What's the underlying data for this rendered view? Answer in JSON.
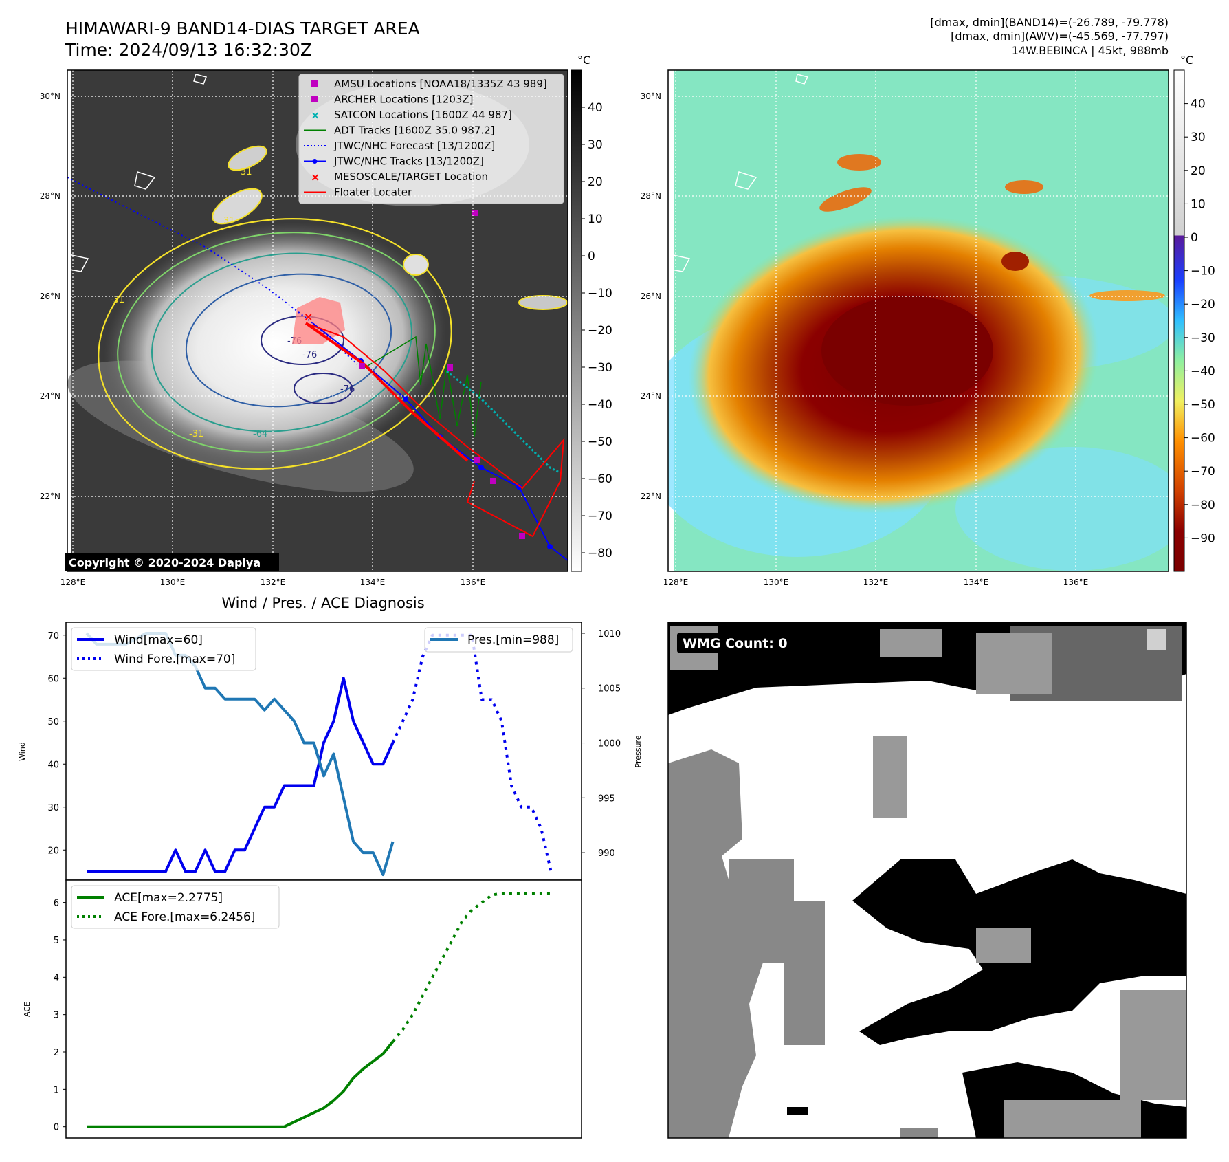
{
  "header": {
    "title_line1": "HIMAWARI-9 BAND14-DIAS TARGET AREA",
    "title_line2": "Time: 2024/09/13 16:32:30Z",
    "stats_line1": "[dmax, dmin](BAND14)=(-26.789, -79.778)",
    "stats_line2": "[dmax, dmin](AWV)=(-45.569, -77.797)",
    "stats_line3": "14W.BEBINCA | 45kt, 988mb"
  },
  "map": {
    "lon_ticks": [
      "128°E",
      "130°E",
      "132°E",
      "134°E",
      "136°E"
    ],
    "lat_ticks": [
      "30°N",
      "28°N",
      "26°N",
      "24°N",
      "22°N"
    ],
    "copyright": "Copyright © 2020-2024 Dapiya",
    "contour_labels": [
      "31",
      "31",
      "-31",
      "-31",
      "-64",
      "-76",
      "-76",
      "-76"
    ],
    "legend": [
      {
        "label": "AMSU Locations [NOAA18/1335Z 43 989]",
        "color": "#c000c0",
        "kind": "square"
      },
      {
        "label": "ARCHER Locations [1203Z]",
        "color": "#c000c0",
        "kind": "square"
      },
      {
        "label": "SATCON Locations [1600Z 44 987]",
        "color": "#00b0b0",
        "kind": "x"
      },
      {
        "label": "ADT Tracks [1600Z 35.0 987.2]",
        "color": "#008000",
        "kind": "line"
      },
      {
        "label": "JTWC/NHC Forecast [13/1200Z]",
        "color": "#0000ff",
        "kind": "dotted"
      },
      {
        "label": "JTWC/NHC Tracks [13/1200Z]",
        "color": "#0000ff",
        "kind": "linedot"
      },
      {
        "label": "MESOSCALE/TARGET Location",
        "color": "#ff0000",
        "kind": "x"
      },
      {
        "label": "Floater Locater",
        "color": "#ff0000",
        "kind": "line"
      }
    ]
  },
  "colorbar_ir": {
    "unit": "°C",
    "ticks": [
      "40",
      "30",
      "20",
      "10",
      "0",
      "−10",
      "−20",
      "−30",
      "−40",
      "−50",
      "−60",
      "−70",
      "−80"
    ]
  },
  "colorbar_wv": {
    "unit": "°C",
    "ticks": [
      "40",
      "30",
      "20",
      "10",
      "0",
      "−10",
      "−20",
      "−30",
      "−40",
      "−50",
      "−60",
      "−70",
      "−80",
      "−90"
    ]
  },
  "chart_data": [
    {
      "type": "line",
      "title": "Wind / Pres. / ACE Diagnosis",
      "ylabel": "Wind",
      "ylabel_right": "Pressure",
      "ylim": [
        13,
        73
      ],
      "ylim_right": [
        987.5,
        1011
      ],
      "yticks": [
        "70",
        "60",
        "50",
        "40",
        "30",
        "20"
      ],
      "yticks_right": [
        "1010",
        "1005",
        "1000",
        "995",
        "990"
      ],
      "series": [
        {
          "name": "Wind[max=60]",
          "style": "solid",
          "color": "#0000ee",
          "x": [
            0,
            1,
            2,
            3,
            4,
            5,
            6,
            7,
            8,
            9,
            10,
            11,
            12,
            13,
            14,
            15,
            16,
            17,
            18,
            19,
            20,
            21,
            22,
            23,
            24,
            25,
            26,
            27,
            28,
            29,
            30,
            31
          ],
          "values": [
            15,
            15,
            15,
            15,
            15,
            15,
            15,
            15,
            15,
            20,
            15,
            15,
            20,
            15,
            15,
            20,
            20,
            25,
            30,
            30,
            35,
            35,
            35,
            35,
            45,
            50,
            60,
            50,
            45,
            40,
            40,
            45
          ]
        },
        {
          "name": "Wind Fore.[max=70]",
          "style": "dotted",
          "color": "#0000ee",
          "x": [
            31,
            32,
            33,
            34,
            35,
            36,
            37,
            38,
            39,
            40,
            41,
            42,
            43,
            44,
            45,
            46,
            47
          ],
          "values": [
            45,
            50,
            55,
            65,
            70,
            70,
            70,
            70,
            70,
            55,
            55,
            50,
            35,
            30,
            30,
            25,
            15
          ]
        },
        {
          "name": "Pres.[min=988]",
          "style": "solid",
          "color": "#1f77b4",
          "axis": "right",
          "x": [
            0,
            1,
            2,
            3,
            4,
            5,
            6,
            7,
            8,
            9,
            10,
            11,
            12,
            13,
            14,
            15,
            16,
            17,
            18,
            19,
            20,
            21,
            22,
            23,
            24,
            25,
            26,
            27,
            28,
            29,
            30,
            31
          ],
          "values": [
            1010,
            1009,
            1009,
            1009,
            1009,
            1009.5,
            1010,
            1010,
            1010,
            1008,
            1008,
            1007,
            1005,
            1005,
            1004,
            1004,
            1004,
            1004,
            1003,
            1004,
            1003,
            1002,
            1000,
            1000,
            997,
            999,
            995,
            991,
            990,
            990,
            988,
            991
          ]
        }
      ]
    },
    {
      "type": "line",
      "ylabel": "ACE",
      "ylim": [
        -0.3,
        6.6
      ],
      "yticks": [
        "6",
        "5",
        "4",
        "3",
        "2",
        "1",
        "0"
      ],
      "series": [
        {
          "name": "ACE[max=2.2775]",
          "style": "solid",
          "color": "#008000",
          "x": [
            0,
            10,
            20,
            22,
            24,
            25,
            26,
            27,
            28,
            29,
            30,
            31
          ],
          "values": [
            0,
            0,
            0,
            0.25,
            0.5,
            0.7,
            0.95,
            1.3,
            1.55,
            1.75,
            1.95,
            2.2775
          ]
        },
        {
          "name": "ACE Fore.[max=6.2456]",
          "style": "dotted",
          "color": "#008000",
          "x": [
            31,
            32,
            33,
            34,
            35,
            36,
            37,
            38,
            39,
            40,
            41,
            42,
            43,
            44,
            45,
            46,
            47
          ],
          "values": [
            2.2775,
            2.6,
            3.0,
            3.5,
            4.0,
            4.5,
            5.0,
            5.5,
            5.8,
            6.0,
            6.2,
            6.2456,
            6.2456,
            6.2456,
            6.2456,
            6.2456,
            6.2456
          ]
        }
      ]
    }
  ],
  "wmg": {
    "label": "WMG Count: 0"
  }
}
